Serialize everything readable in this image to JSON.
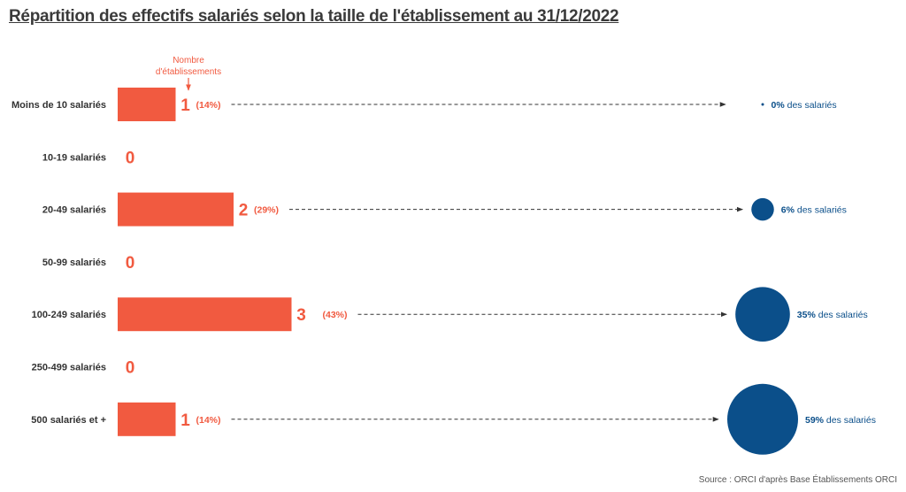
{
  "title": "Répartition des effectifs salariés selon la taille de l'établissement au 31/12/2022",
  "source": "Source : ORCI d'après Base Établissements ORCI",
  "annotation": [
    "Nombre",
    "d'établissements"
  ],
  "pct_suffix": "des salariés",
  "colors": {
    "bar": "#f15a40",
    "bubble": "#0b4f8a",
    "text": "#333333"
  },
  "chart_data": {
    "type": "bar",
    "title": "Répartition des effectifs salariés selon la taille de l'établissement au 31/12/2022",
    "categories": [
      "Moins de 10 salariés",
      "10-19 salariés",
      "20-49 salariés",
      "50-99 salariés",
      "100-249 salariés",
      "250-499 salariés",
      "500 salariés et +"
    ],
    "series": [
      {
        "name": "Nombre d'établissements",
        "values": [
          1,
          0,
          2,
          0,
          3,
          0,
          1
        ]
      }
    ],
    "establishment_share_labels": [
      "(14%)",
      "",
      "(29%)",
      "",
      "(43%)",
      "",
      "(14%)"
    ],
    "employee_share_percent": [
      0,
      null,
      6,
      null,
      35,
      null,
      59
    ],
    "employee_share_labels": [
      "0%",
      "",
      "6%",
      "",
      "35%",
      "",
      "59%"
    ]
  }
}
